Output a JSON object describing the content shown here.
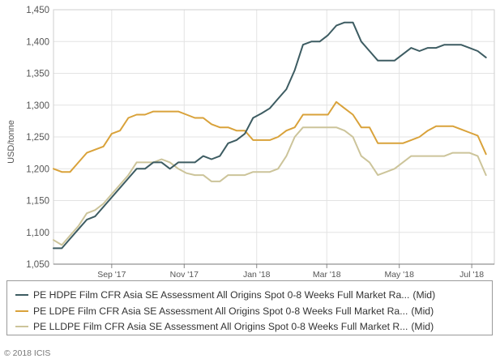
{
  "chart_data": {
    "type": "line",
    "ylabel": "USD/tonne",
    "ylim": [
      1050,
      1450
    ],
    "yticks": [
      1050,
      1100,
      1150,
      1200,
      1250,
      1300,
      1350,
      1400,
      1450
    ],
    "ytick_labels": [
      "1,050",
      "1,100",
      "1,150",
      "1,200",
      "1,250",
      "1,300",
      "1,350",
      "1,400",
      "1,450"
    ],
    "x_range": [
      "2017-07-14",
      "2018-07-20"
    ],
    "xticks": [
      {
        "date": "2017-09-01",
        "label": "Sep '17"
      },
      {
        "date": "2017-11-01",
        "label": "Nov '17"
      },
      {
        "date": "2018-01-01",
        "label": "Jan '18"
      },
      {
        "date": "2018-03-01",
        "label": "Mar '18"
      },
      {
        "date": "2018-05-01",
        "label": "May '18"
      },
      {
        "date": "2018-07-01",
        "label": "Jul '18"
      }
    ],
    "grid": true,
    "legend_position": "bottom",
    "series": [
      {
        "name": "PE HDPE Film CFR Asia SE Assessment All Origins Spot 0-8 Weeks Full Market Ra...",
        "suffix": "(Mid)",
        "color": "#3d5c62",
        "points": [
          [
            "2017-07-14",
            1075
          ],
          [
            "2017-07-21",
            1075
          ],
          [
            "2017-07-28",
            1090
          ],
          [
            "2017-08-04",
            1105
          ],
          [
            "2017-08-11",
            1120
          ],
          [
            "2017-08-18",
            1125
          ],
          [
            "2017-08-25",
            1140
          ],
          [
            "2017-09-01",
            1155
          ],
          [
            "2017-09-08",
            1170
          ],
          [
            "2017-09-15",
            1185
          ],
          [
            "2017-09-22",
            1200
          ],
          [
            "2017-09-29",
            1200
          ],
          [
            "2017-10-06",
            1210
          ],
          [
            "2017-10-13",
            1210
          ],
          [
            "2017-10-20",
            1200
          ],
          [
            "2017-10-27",
            1210
          ],
          [
            "2017-11-03",
            1210
          ],
          [
            "2017-11-10",
            1210
          ],
          [
            "2017-11-17",
            1220
          ],
          [
            "2017-11-24",
            1215
          ],
          [
            "2017-12-01",
            1220
          ],
          [
            "2017-12-08",
            1240
          ],
          [
            "2017-12-15",
            1245
          ],
          [
            "2017-12-22",
            1255
          ],
          [
            "2017-12-29",
            1280
          ],
          [
            "2018-01-05",
            1287
          ],
          [
            "2018-01-12",
            1295
          ],
          [
            "2018-01-19",
            1310
          ],
          [
            "2018-01-26",
            1325
          ],
          [
            "2018-02-02",
            1355
          ],
          [
            "2018-02-09",
            1395
          ],
          [
            "2018-02-16",
            1400
          ],
          [
            "2018-02-23",
            1400
          ],
          [
            "2018-03-02",
            1410
          ],
          [
            "2018-03-09",
            1425
          ],
          [
            "2018-03-16",
            1430
          ],
          [
            "2018-03-23",
            1430
          ],
          [
            "2018-03-30",
            1400
          ],
          [
            "2018-04-06",
            1385
          ],
          [
            "2018-04-13",
            1370
          ],
          [
            "2018-04-20",
            1370
          ],
          [
            "2018-04-27",
            1370
          ],
          [
            "2018-05-04",
            1380
          ],
          [
            "2018-05-11",
            1390
          ],
          [
            "2018-05-18",
            1385
          ],
          [
            "2018-05-25",
            1390
          ],
          [
            "2018-06-01",
            1390
          ],
          [
            "2018-06-08",
            1395
          ],
          [
            "2018-06-15",
            1395
          ],
          [
            "2018-06-22",
            1395
          ],
          [
            "2018-06-29",
            1390
          ],
          [
            "2018-07-06",
            1385
          ],
          [
            "2018-07-13",
            1375
          ]
        ]
      },
      {
        "name": "PE LDPE Film CFR Asia SE Assessment All Origins Spot 0-8 Weeks Full Market Ra...",
        "suffix": "(Mid)",
        "color": "#d9a23a",
        "points": [
          [
            "2017-07-14",
            1200
          ],
          [
            "2017-07-21",
            1195
          ],
          [
            "2017-07-28",
            1195
          ],
          [
            "2017-08-04",
            1210
          ],
          [
            "2017-08-11",
            1225
          ],
          [
            "2017-08-18",
            1230
          ],
          [
            "2017-08-25",
            1235
          ],
          [
            "2017-09-01",
            1255
          ],
          [
            "2017-09-08",
            1260
          ],
          [
            "2017-09-15",
            1280
          ],
          [
            "2017-09-22",
            1285
          ],
          [
            "2017-09-29",
            1285
          ],
          [
            "2017-10-06",
            1290
          ],
          [
            "2017-10-13",
            1290
          ],
          [
            "2017-10-20",
            1290
          ],
          [
            "2017-10-27",
            1290
          ],
          [
            "2017-11-03",
            1285
          ],
          [
            "2017-11-10",
            1280
          ],
          [
            "2017-11-17",
            1280
          ],
          [
            "2017-11-24",
            1270
          ],
          [
            "2017-12-01",
            1265
          ],
          [
            "2017-12-08",
            1265
          ],
          [
            "2017-12-15",
            1260
          ],
          [
            "2017-12-22",
            1260
          ],
          [
            "2017-12-29",
            1245
          ],
          [
            "2018-01-05",
            1245
          ],
          [
            "2018-01-12",
            1245
          ],
          [
            "2018-01-19",
            1250
          ],
          [
            "2018-01-26",
            1260
          ],
          [
            "2018-02-02",
            1265
          ],
          [
            "2018-02-09",
            1285
          ],
          [
            "2018-02-16",
            1285
          ],
          [
            "2018-02-23",
            1285
          ],
          [
            "2018-03-02",
            1285
          ],
          [
            "2018-03-09",
            1305
          ],
          [
            "2018-03-16",
            1295
          ],
          [
            "2018-03-23",
            1285
          ],
          [
            "2018-03-30",
            1265
          ],
          [
            "2018-04-06",
            1265
          ],
          [
            "2018-04-13",
            1240
          ],
          [
            "2018-04-20",
            1240
          ],
          [
            "2018-04-27",
            1240
          ],
          [
            "2018-05-04",
            1240
          ],
          [
            "2018-05-11",
            1245
          ],
          [
            "2018-05-18",
            1250
          ],
          [
            "2018-05-25",
            1260
          ],
          [
            "2018-06-01",
            1267
          ],
          [
            "2018-06-08",
            1267
          ],
          [
            "2018-06-15",
            1267
          ],
          [
            "2018-06-22",
            1262
          ],
          [
            "2018-06-29",
            1257
          ],
          [
            "2018-07-06",
            1252
          ],
          [
            "2018-07-13",
            1223
          ]
        ]
      },
      {
        "name": "PE LLDPE Film CFR Asia SE Assessment All Origins Spot 0-8 Weeks Full Market R...",
        "suffix": "(Mid)",
        "color": "#ccc49a",
        "points": [
          [
            "2017-07-14",
            1088
          ],
          [
            "2017-07-21",
            1080
          ],
          [
            "2017-07-28",
            1095
          ],
          [
            "2017-08-04",
            1110
          ],
          [
            "2017-08-11",
            1130
          ],
          [
            "2017-08-18",
            1135
          ],
          [
            "2017-08-25",
            1145
          ],
          [
            "2017-09-01",
            1160
          ],
          [
            "2017-09-08",
            1175
          ],
          [
            "2017-09-15",
            1190
          ],
          [
            "2017-09-22",
            1210
          ],
          [
            "2017-09-29",
            1210
          ],
          [
            "2017-10-06",
            1210
          ],
          [
            "2017-10-13",
            1215
          ],
          [
            "2017-10-20",
            1210
          ],
          [
            "2017-10-27",
            1200
          ],
          [
            "2017-11-03",
            1193
          ],
          [
            "2017-11-10",
            1190
          ],
          [
            "2017-11-17",
            1190
          ],
          [
            "2017-11-24",
            1180
          ],
          [
            "2017-12-01",
            1180
          ],
          [
            "2017-12-08",
            1190
          ],
          [
            "2017-12-15",
            1190
          ],
          [
            "2017-12-22",
            1190
          ],
          [
            "2017-12-29",
            1195
          ],
          [
            "2018-01-05",
            1195
          ],
          [
            "2018-01-12",
            1195
          ],
          [
            "2018-01-19",
            1200
          ],
          [
            "2018-01-26",
            1220
          ],
          [
            "2018-02-02",
            1250
          ],
          [
            "2018-02-09",
            1265
          ],
          [
            "2018-02-16",
            1265
          ],
          [
            "2018-02-23",
            1265
          ],
          [
            "2018-03-02",
            1265
          ],
          [
            "2018-03-09",
            1265
          ],
          [
            "2018-03-16",
            1260
          ],
          [
            "2018-03-23",
            1250
          ],
          [
            "2018-03-30",
            1220
          ],
          [
            "2018-04-06",
            1210
          ],
          [
            "2018-04-13",
            1190
          ],
          [
            "2018-04-20",
            1195
          ],
          [
            "2018-04-27",
            1200
          ],
          [
            "2018-05-04",
            1210
          ],
          [
            "2018-05-11",
            1220
          ],
          [
            "2018-05-18",
            1220
          ],
          [
            "2018-05-25",
            1220
          ],
          [
            "2018-06-01",
            1220
          ],
          [
            "2018-06-08",
            1220
          ],
          [
            "2018-06-15",
            1225
          ],
          [
            "2018-06-22",
            1225
          ],
          [
            "2018-06-29",
            1225
          ],
          [
            "2018-07-06",
            1220
          ],
          [
            "2018-07-13",
            1190
          ]
        ]
      }
    ]
  },
  "footer": {
    "copyright": "© 2018 ICIS"
  }
}
